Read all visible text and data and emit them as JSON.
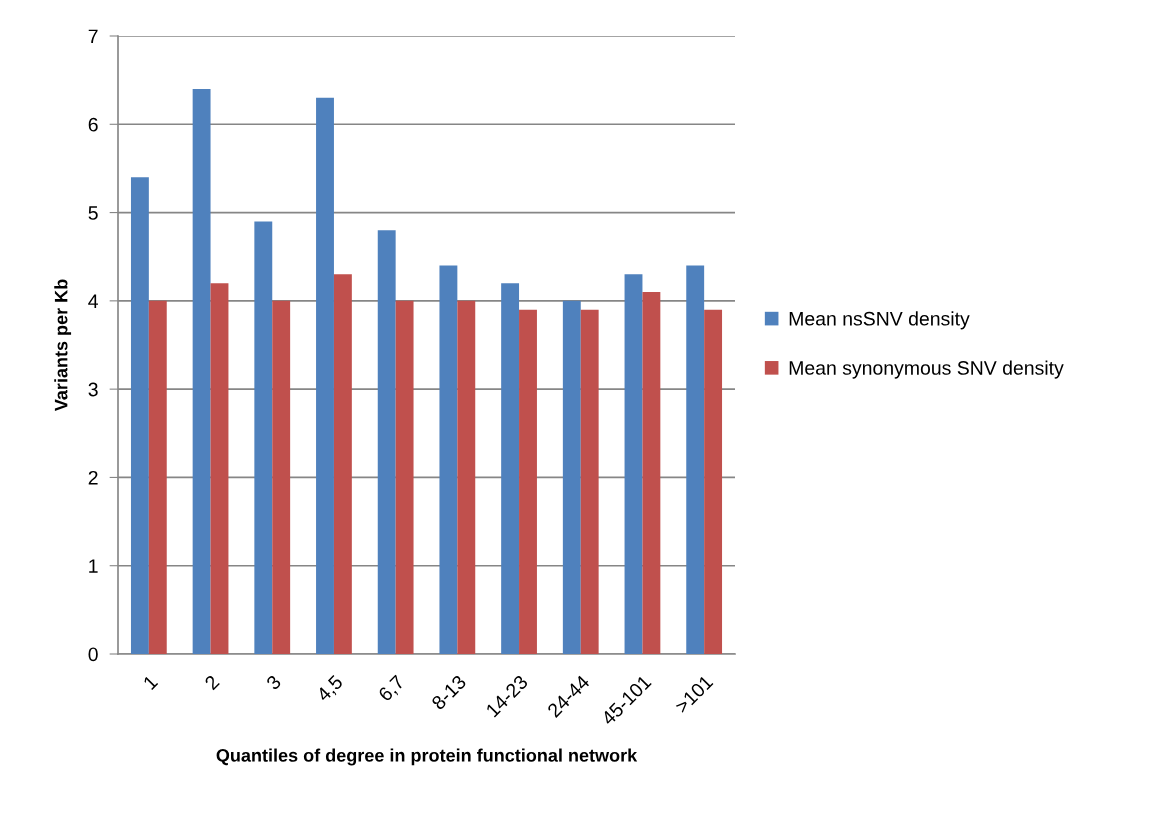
{
  "chart_data": {
    "type": "bar",
    "xlabel": "Quantiles of degree in protein functional network",
    "ylabel": "Variants per Kb",
    "categories": [
      "1",
      "2",
      "3",
      "4,5",
      "6,7",
      "8-13",
      "14-23",
      "24-44",
      "45-101",
      ">101"
    ],
    "series": [
      {
        "name": "Mean nsSNV density",
        "color": "#4f81bd",
        "values": [
          5.4,
          6.4,
          4.9,
          6.3,
          4.8,
          4.4,
          4.2,
          4.0,
          4.3,
          4.4
        ]
      },
      {
        "name": "Mean synonymous SNV density",
        "color": "#c0504d",
        "values": [
          4.0,
          4.2,
          4.0,
          4.3,
          4.0,
          4.0,
          3.9,
          3.9,
          4.1,
          3.9
        ]
      }
    ],
    "ylim": [
      0,
      7
    ],
    "yticks": [
      0,
      1,
      2,
      3,
      4,
      5,
      6,
      7
    ],
    "grid": "y",
    "legend": "right"
  }
}
